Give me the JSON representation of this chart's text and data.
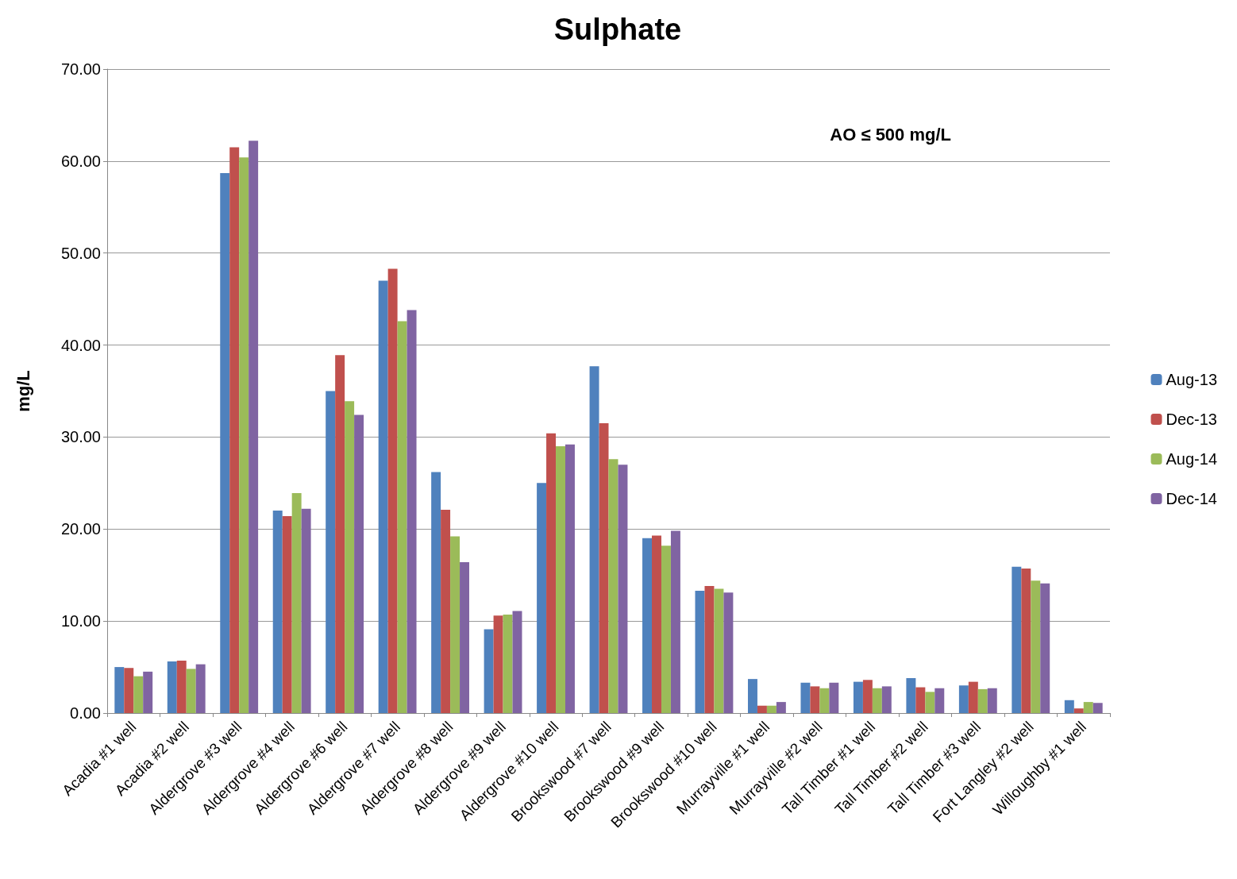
{
  "chart_data": {
    "type": "bar",
    "title": "Sulphate",
    "ylabel": "mg/L",
    "annotations": [
      "AO ≤ 500 mg/L"
    ],
    "categories": [
      "Acadia #1 well",
      "Acadia #2 well",
      "Aldergrove #3 well",
      "Aldergrove #4 well",
      "Aldergrove #6 well",
      "Aldergrove #7 well",
      "Aldergrove #8 well",
      "Aldergrove #9 well",
      "Aldergrove #10 well",
      "Brookswood #7 well",
      "Brookswood #9 well",
      "Brookswood #10 well",
      "Murrayville #1 well",
      "Murrayville #2 well",
      "Tall Timber #1 well",
      "Tall Timber #2 well",
      "Tall Timber #3 well",
      "Fort Langley #2 well",
      "Willoughby #1 well"
    ],
    "series": [
      {
        "name": "Aug-13",
        "color": "#4f81bd",
        "values": [
          5.0,
          5.6,
          58.7,
          22.0,
          35.0,
          47.0,
          26.2,
          9.1,
          25.0,
          37.7,
          19.0,
          13.3,
          3.7,
          3.3,
          3.4,
          3.8,
          3.0,
          15.9,
          1.4
        ]
      },
      {
        "name": "Dec-13",
        "color": "#c0504d",
        "values": [
          4.9,
          5.7,
          61.5,
          21.4,
          38.9,
          48.3,
          22.1,
          10.6,
          30.4,
          31.5,
          19.3,
          13.8,
          0.8,
          2.9,
          3.6,
          2.8,
          3.4,
          15.7,
          0.5
        ]
      },
      {
        "name": "Aug-14",
        "color": "#9bbb59",
        "values": [
          4.0,
          4.8,
          60.4,
          23.9,
          33.9,
          42.6,
          19.2,
          10.7,
          29.0,
          27.6,
          18.2,
          13.5,
          0.8,
          2.7,
          2.7,
          2.3,
          2.6,
          14.4,
          1.2
        ]
      },
      {
        "name": "Dec-14",
        "color": "#8064a2",
        "values": [
          4.5,
          5.3,
          62.2,
          22.2,
          32.4,
          43.8,
          16.4,
          11.1,
          29.2,
          27.0,
          19.8,
          13.1,
          1.2,
          3.3,
          2.9,
          2.7,
          2.7,
          14.1,
          1.1
        ]
      }
    ],
    "ylim": [
      0,
      70
    ],
    "yticks": [
      {
        "value": 0,
        "label": "0.00"
      },
      {
        "value": 10,
        "label": "10.00"
      },
      {
        "value": 20,
        "label": "20.00"
      },
      {
        "value": 30,
        "label": "30.00"
      },
      {
        "value": 40,
        "label": "40.00"
      },
      {
        "value": 50,
        "label": "50.00"
      },
      {
        "value": 60,
        "label": "60.00"
      },
      {
        "value": 70,
        "label": "70.00"
      }
    ],
    "grid": "y",
    "legend": "right"
  }
}
